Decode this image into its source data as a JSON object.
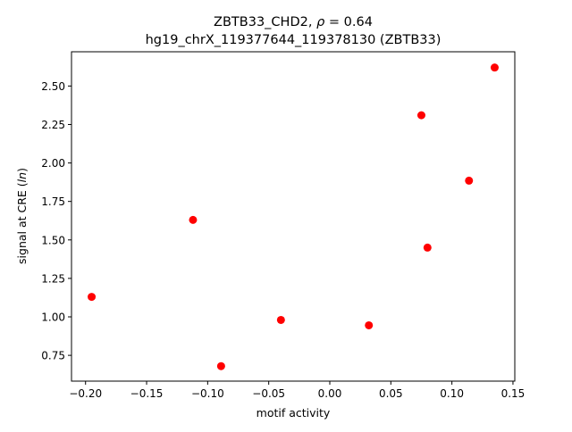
{
  "chart_data": {
    "type": "scatter",
    "title_line1": "ZBTB33_CHD2, ρ = 0.64",
    "title_line2": "hg19_chrX_119377644_119378130 (ZBTB33)",
    "xlabel": "motif activity",
    "ylabel": "signal at CRE (ln)",
    "xlim": [
      -0.2115,
      0.1515
    ],
    "ylim": [
      0.5825,
      2.7225
    ],
    "xticks": [
      -0.2,
      -0.15,
      -0.1,
      -0.05,
      0.0,
      0.05,
      0.1,
      0.15
    ],
    "xtick_labels": [
      "−0.20",
      "−0.15",
      "−0.10",
      "−0.05",
      "0.00",
      "0.05",
      "0.10",
      "0.15"
    ],
    "yticks": [
      0.75,
      1.0,
      1.25,
      1.5,
      1.75,
      2.0,
      2.25,
      2.5
    ],
    "ytick_labels": [
      "0.75",
      "1.00",
      "1.25",
      "1.50",
      "1.75",
      "2.00",
      "2.25",
      "2.50"
    ],
    "point_color": "#ff0000",
    "points": [
      {
        "x": -0.195,
        "y": 1.13
      },
      {
        "x": -0.112,
        "y": 1.63
      },
      {
        "x": -0.089,
        "y": 0.68
      },
      {
        "x": -0.04,
        "y": 0.98
      },
      {
        "x": 0.032,
        "y": 0.945
      },
      {
        "x": 0.075,
        "y": 2.31
      },
      {
        "x": 0.08,
        "y": 1.45
      },
      {
        "x": 0.114,
        "y": 1.885
      },
      {
        "x": 0.135,
        "y": 2.62
      }
    ]
  }
}
